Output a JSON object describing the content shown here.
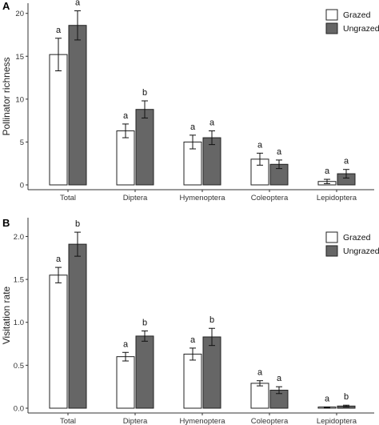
{
  "chart_data": [
    {
      "panel": "A",
      "type": "bar",
      "title": "",
      "xlabel": "",
      "ylabel": "Pollinator richness",
      "categories": [
        "Total",
        "Diptera",
        "Hymenoptera",
        "Coleoptera",
        "Lepidoptera"
      ],
      "ylim": [
        0,
        21
      ],
      "yticks": [
        0,
        5,
        10,
        15,
        20
      ],
      "legend_position": "top-right",
      "series": [
        {
          "name": "Grazed",
          "color": "#ffffff",
          "values": [
            15.2,
            6.3,
            5.0,
            3.0,
            0.4
          ],
          "errors": [
            1.9,
            0.8,
            0.8,
            0.7,
            0.25
          ],
          "letters": [
            "a",
            "a",
            "a",
            "a",
            "a"
          ]
        },
        {
          "name": "Ungrazed",
          "color": "#666666",
          "values": [
            18.6,
            8.8,
            5.5,
            2.4,
            1.3
          ],
          "errors": [
            1.7,
            1.0,
            0.8,
            0.5,
            0.5
          ],
          "letters": [
            "a",
            "b",
            "a",
            "a",
            "a"
          ]
        }
      ]
    },
    {
      "panel": "B",
      "type": "bar",
      "title": "",
      "xlabel": "",
      "ylabel": "Visitation rate",
      "categories": [
        "Total",
        "Diptera",
        "Hymenoptera",
        "Coleoptera",
        "Lepidoptera"
      ],
      "ylim": [
        0,
        2.2
      ],
      "yticks": [
        0.0,
        0.5,
        1.0,
        1.5,
        2.0
      ],
      "ytick_labels": [
        "0.0",
        "0.5",
        "1.0",
        "1.5",
        "2.0"
      ],
      "legend_position": "top-right",
      "series": [
        {
          "name": "Grazed",
          "color": "#ffffff",
          "values": [
            1.55,
            0.6,
            0.63,
            0.29,
            0.01
          ],
          "errors": [
            0.09,
            0.05,
            0.07,
            0.03,
            0.005
          ],
          "letters": [
            "a",
            "a",
            "a",
            "a",
            "a"
          ]
        },
        {
          "name": "Ungrazed",
          "color": "#666666",
          "values": [
            1.91,
            0.84,
            0.83,
            0.21,
            0.025
          ],
          "errors": [
            0.14,
            0.06,
            0.1,
            0.04,
            0.01
          ],
          "letters": [
            "b",
            "b",
            "b",
            "a",
            "b"
          ]
        }
      ]
    }
  ]
}
